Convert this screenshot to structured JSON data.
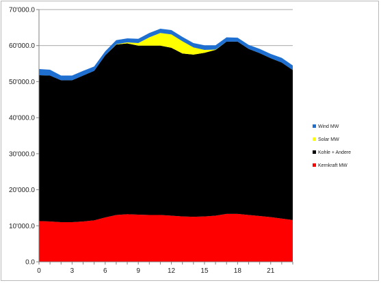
{
  "chart_data": {
    "type": "area",
    "stacked": true,
    "x": [
      0,
      1,
      2,
      3,
      4,
      5,
      6,
      7,
      8,
      9,
      10,
      11,
      12,
      13,
      14,
      15,
      16,
      17,
      18,
      19,
      20,
      21,
      22,
      23
    ],
    "xticks": [
      0,
      3,
      6,
      9,
      12,
      15,
      18,
      21
    ],
    "xtick_labels": [
      "0",
      "3",
      "6",
      "9",
      "12",
      "15",
      "18",
      "21"
    ],
    "xlim": [
      0,
      23
    ],
    "ylim": [
      0,
      70000
    ],
    "yticks": [
      0,
      10000,
      20000,
      30000,
      40000,
      50000,
      60000,
      70000
    ],
    "ytick_labels": [
      "0.0",
      "10'000.0",
      "20'000.0",
      "30'000.0",
      "40'000.0",
      "50'000.0",
      "60'000.0",
      "70'000.0"
    ],
    "grid": "horizontal",
    "legend_position": "right",
    "series": [
      {
        "name": "Kernkraft MW",
        "color": "#ff0000",
        "values": [
          11300,
          11200,
          11000,
          11000,
          11200,
          11500,
          12300,
          13000,
          13200,
          13100,
          13000,
          13000,
          12800,
          12600,
          12500,
          12600,
          12800,
          13300,
          13300,
          13000,
          12700,
          12400,
          12000,
          11600
        ]
      },
      {
        "name": "Kohle + Andere",
        "color": "#000000",
        "values": [
          40500,
          40500,
          39400,
          39400,
          40500,
          41500,
          45000,
          47300,
          47400,
          46900,
          47000,
          47000,
          46600,
          45200,
          45000,
          45400,
          46000,
          47800,
          47800,
          46100,
          45200,
          44100,
          43300,
          41600
        ]
      },
      {
        "name": "Solar MW",
        "color": "#ffff00",
        "values": [
          0,
          0,
          0,
          0,
          0,
          0,
          0,
          100,
          300,
          700,
          2300,
          3500,
          3700,
          3400,
          2000,
          800,
          100,
          0,
          0,
          0,
          0,
          0,
          0,
          0
        ]
      },
      {
        "name": "Wind MW",
        "color": "#1f6fd0",
        "values": [
          1700,
          1600,
          1300,
          1300,
          1300,
          1200,
          1100,
          1100,
          1100,
          1200,
          1200,
          1200,
          1200,
          1200,
          1200,
          1300,
          1200,
          1200,
          1100,
          1100,
          1200,
          1200,
          1300,
          1300
        ]
      }
    ],
    "legend_order": [
      "Wind MW",
      "Solar MW",
      "Kohle + Andere",
      "Kernkraft MW"
    ]
  }
}
